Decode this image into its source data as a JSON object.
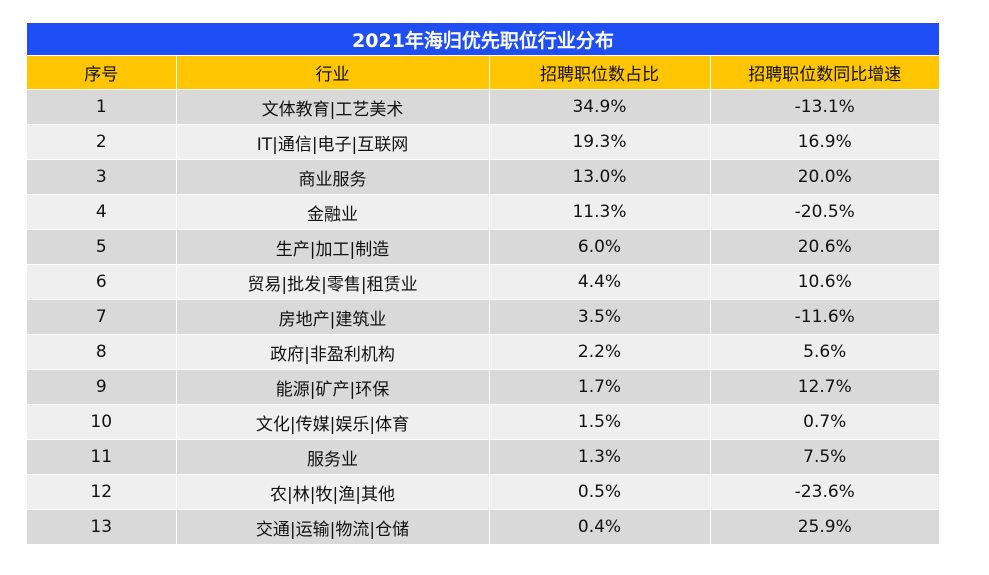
{
  "chart_data": {
    "type": "table",
    "title": "2021年海归优先职位行业分布",
    "columns": [
      "序号",
      "行业",
      "招聘职位数占比",
      "招聘职位数同比增速"
    ],
    "rows": [
      [
        "1",
        "文体教育|工艺美术",
        "34.9%",
        "-13.1%"
      ],
      [
        "2",
        "IT|通信|电子|互联网",
        "19.3%",
        "16.9%"
      ],
      [
        "3",
        "商业服务",
        "13.0%",
        "20.0%"
      ],
      [
        "4",
        "金融业",
        "11.3%",
        "-20.5%"
      ],
      [
        "5",
        "生产|加工|制造",
        "6.0%",
        "20.6%"
      ],
      [
        "6",
        "贸易|批发|零售|租赁业",
        "4.4%",
        "10.6%"
      ],
      [
        "7",
        "房地产|建筑业",
        "3.5%",
        "-11.6%"
      ],
      [
        "8",
        "政府|非盈利机构",
        "2.2%",
        "5.6%"
      ],
      [
        "9",
        "能源|矿产|环保",
        "1.7%",
        "12.7%"
      ],
      [
        "10",
        "文化|传媒|娱乐|体育",
        "1.5%",
        "0.7%"
      ],
      [
        "11",
        "服务业",
        "1.3%",
        "7.5%"
      ],
      [
        "12",
        "农|林|牧|渔|其他",
        "0.5%",
        "-23.6%"
      ],
      [
        "13",
        "交通|运输|物流|仓储",
        "0.4%",
        "25.9%"
      ]
    ]
  },
  "colors": {
    "title_background": "#1f4ef5",
    "header_background": "#ffc600",
    "row_odd": "#d9d9d9",
    "row_even": "#efefef"
  }
}
